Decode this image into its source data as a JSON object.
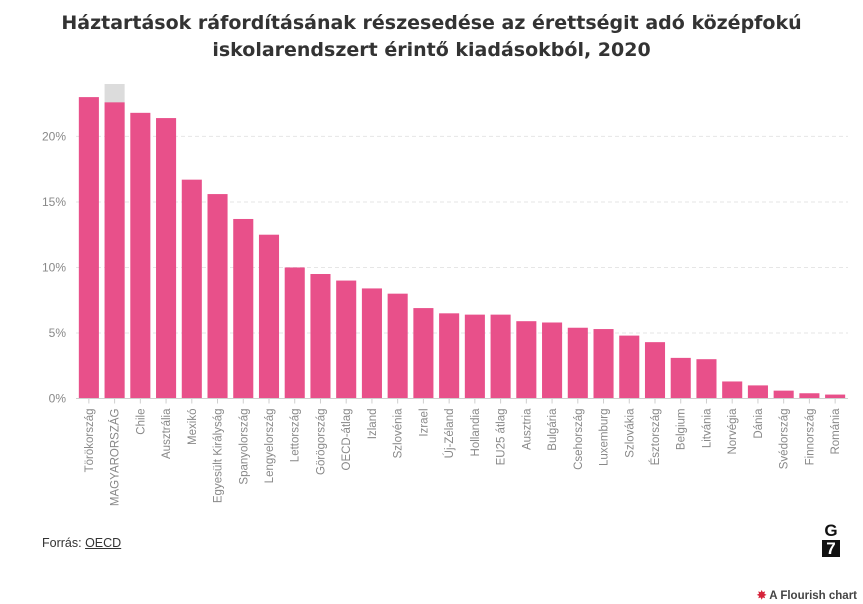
{
  "title": "Háztartások ráfordításának részesedése az érettségit adó középfokú iskolarendszert érintő kiadásokból, 2020",
  "source": {
    "label": "Forrás:",
    "link": "OECD"
  },
  "logo": {
    "top": "G",
    "bottom": "7"
  },
  "credit": "A Flourish chart",
  "colors": {
    "bar": "#e8508a",
    "highlight_bg": "#dcdcdc",
    "grid": "#e6e6e6"
  },
  "chart_data": {
    "type": "bar",
    "title": "Háztartások ráfordításának részesedése az érettségit adó középfokú iskolarendszert érintő kiadásokból, 2020",
    "xlabel": "",
    "ylabel": "",
    "ylim": [
      0,
      24
    ],
    "yticks": [
      0,
      5,
      10,
      15,
      20
    ],
    "ytick_labels": [
      "0%",
      "5%",
      "10%",
      "15%",
      "20%"
    ],
    "grid": true,
    "highlight": "MAGYARORSZÁG",
    "categories": [
      "Törökország",
      "MAGYARORSZÁG",
      "Chile",
      "Ausztrália",
      "Mexikó",
      "Egyesült Királyság",
      "Spanyolország",
      "Lengyelország",
      "Lettország",
      "Görögország",
      "OECD-átlag",
      "Izland",
      "Szlovénia",
      "Izrael",
      "Új-Zéland",
      "Hollandia",
      "EU25 átlag",
      "Ausztria",
      "Bulgária",
      "Csehország",
      "Luxemburg",
      "Szlovákia",
      "Észtország",
      "Belgium",
      "Litvánia",
      "Norvégia",
      "Dánia",
      "Svédország",
      "Finnország",
      "Románia"
    ],
    "values": [
      23.0,
      22.6,
      21.8,
      21.4,
      16.7,
      15.6,
      13.7,
      12.5,
      10.0,
      9.5,
      9.0,
      8.4,
      8.0,
      6.9,
      6.5,
      6.4,
      6.4,
      5.9,
      5.8,
      5.4,
      5.3,
      4.8,
      4.3,
      3.1,
      3.0,
      1.3,
      1.0,
      0.6,
      0.4,
      0.3
    ]
  }
}
